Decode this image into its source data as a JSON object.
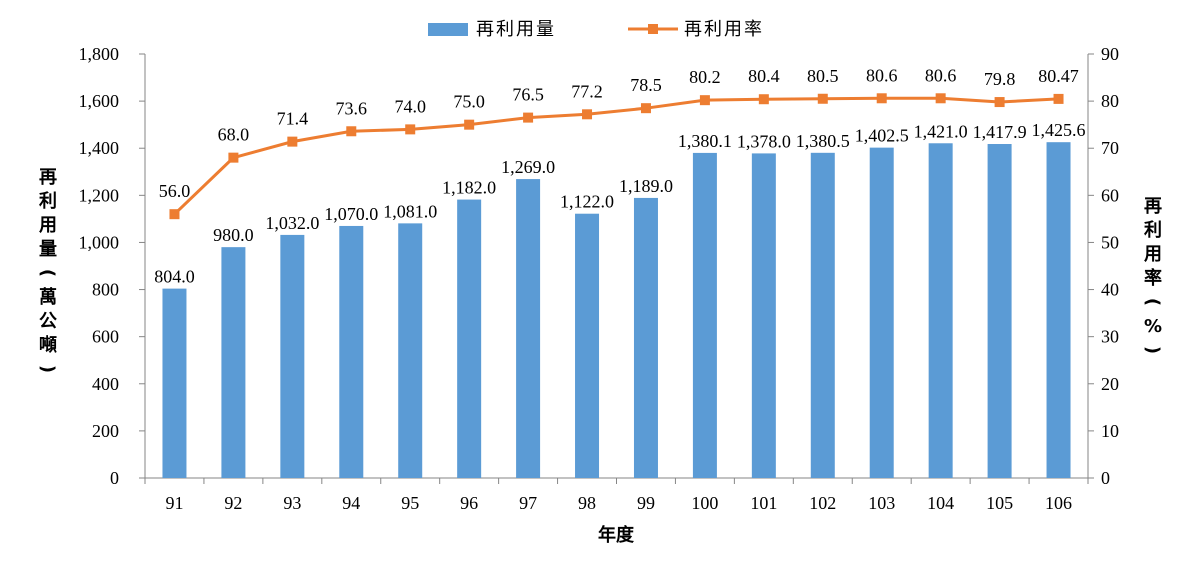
{
  "chart_data": {
    "type": "bar+line",
    "categories": [
      "91",
      "92",
      "93",
      "94",
      "95",
      "96",
      "97",
      "98",
      "99",
      "100",
      "101",
      "102",
      "103",
      "104",
      "105",
      "106"
    ],
    "series": [
      {
        "name": "再利用量",
        "type": "bar",
        "axis": "left",
        "color": "#5B9BD5",
        "values": [
          804.0,
          980.0,
          1032.0,
          1070.0,
          1081.0,
          1182.0,
          1269.0,
          1122.0,
          1189.0,
          1380.1,
          1378.0,
          1380.5,
          1402.5,
          1421.0,
          1417.9,
          1425.6
        ],
        "labels": [
          "804.0",
          "980.0",
          "1,032.0",
          "1,070.0",
          "1,081.0",
          "1,182.0",
          "1,269.0",
          "1,122.0",
          "1,189.0",
          "1,380.1",
          "1,378.0",
          "1,380.5",
          "1,402.5",
          "1,421.0",
          "1,417.9",
          "1,425.6"
        ]
      },
      {
        "name": "再利用率",
        "type": "line",
        "axis": "right",
        "color": "#ED7D31",
        "values": [
          56.0,
          68.0,
          71.4,
          73.6,
          74.0,
          75.0,
          76.5,
          77.2,
          78.5,
          80.2,
          80.4,
          80.5,
          80.6,
          80.6,
          79.8,
          80.47
        ],
        "labels": [
          "56.0",
          "68.0",
          "71.4",
          "73.6",
          "74.0",
          "75.0",
          "76.5",
          "77.2",
          "78.5",
          "80.2",
          "80.4",
          "80.5",
          "80.6",
          "80.6",
          "79.8",
          "80.47"
        ]
      }
    ],
    "xlabel": "年度",
    "ylabel_left": "再利用量(萬公噸)",
    "ylabel_right": "再利用率(%)",
    "ylim_left": [
      0,
      1800
    ],
    "yticks_left": [
      "0",
      "200",
      "400",
      "600",
      "800",
      "1,000",
      "1,200",
      "1,400",
      "1,600",
      "1,800"
    ],
    "ylim_right": [
      0,
      90
    ],
    "yticks_right": [
      "0",
      "10",
      "20",
      "30",
      "40",
      "50",
      "60",
      "70",
      "80",
      "90"
    ],
    "grid": false,
    "legend_position": "top-center"
  }
}
